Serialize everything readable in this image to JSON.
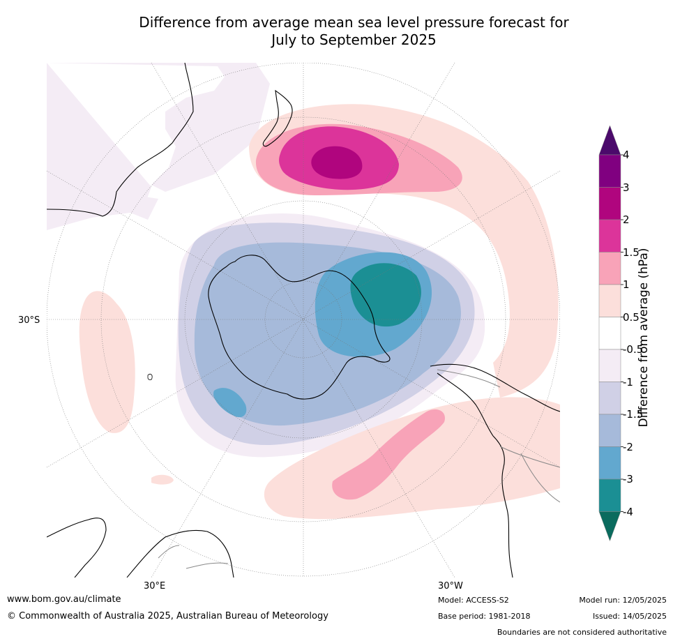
{
  "title": {
    "line1": "Difference from average mean sea level pressure forecast for",
    "line2": "July to September 2025"
  },
  "map": {
    "labels": {
      "left_lat": "30°S",
      "bottom_lon_east": "30°E",
      "bottom_lon_west": "30°W"
    },
    "colors": {
      "land_outline": "#000000",
      "border_outline": "#888888",
      "graticule": "#777777"
    }
  },
  "legend": {
    "title": "Difference from average (hPa)",
    "ticks": [
      "4",
      "3",
      "2",
      "1.5",
      "1",
      "0.5",
      "-0.5",
      "-1",
      "-1.5",
      "-2",
      "-3",
      "-4"
    ],
    "bins": [
      {
        "range": "> 4",
        "color": "#4b0a6b"
      },
      {
        "range": "3 to 4",
        "color": "#800080"
      },
      {
        "range": "2 to 3",
        "color": "#b0057e"
      },
      {
        "range": "1.5 to 2",
        "color": "#dc349a"
      },
      {
        "range": "1 to 1.5",
        "color": "#f8a3b8"
      },
      {
        "range": "0.5 to 1",
        "color": "#fcdfdb"
      },
      {
        "range": "-0.5 to 0.5",
        "color": "#ffffff"
      },
      {
        "range": "-1 to -0.5",
        "color": "#f4ecf5"
      },
      {
        "range": "-1.5 to -1",
        "color": "#d0d0e6"
      },
      {
        "range": "-2 to -1.5",
        "color": "#a6bada"
      },
      {
        "range": "-3 to -2",
        "color": "#62a8cf"
      },
      {
        "range": "-4 to -3",
        "color": "#1b8f94"
      },
      {
        "range": "< -4",
        "color": "#0a6b5e"
      }
    ]
  },
  "footer": {
    "website": "www.bom.gov.au/climate",
    "copyright": "© Commonwealth of Australia 2025, Australian Bureau of Meteorology",
    "model": "Model: ACCESS-S2",
    "base_period": "Base period: 1981-2018",
    "model_run": "Model run: 12/05/2025",
    "issued": "Issued: 14/05/2025",
    "disclaimer": "Boundaries are not considered authoritative"
  }
}
